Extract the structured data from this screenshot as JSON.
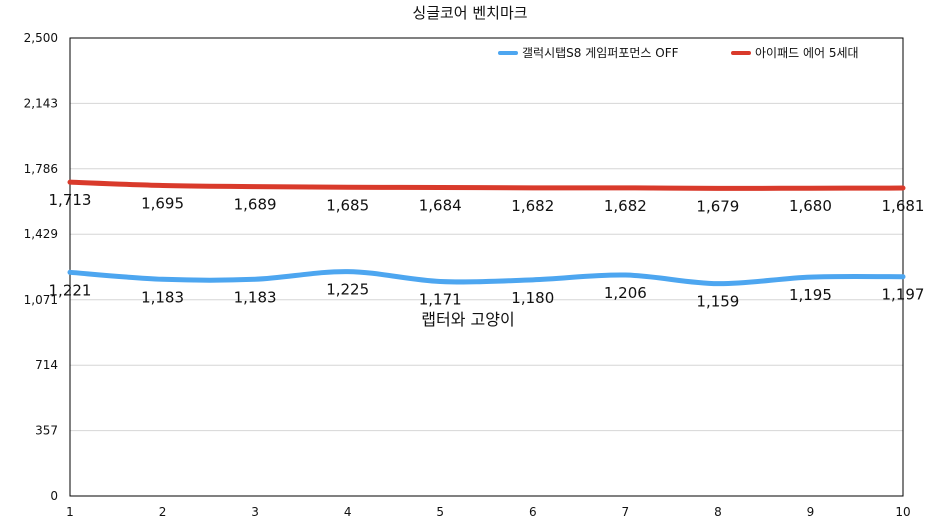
{
  "chart_data": {
    "type": "line",
    "title": "싱글코어 벤치마크",
    "xlabel": "",
    "ylabel": "",
    "categories": [
      "1",
      "2",
      "3",
      "4",
      "5",
      "6",
      "7",
      "8",
      "9",
      "10"
    ],
    "ylim": [
      0,
      2500
    ],
    "yticks": [
      "0",
      "357",
      "714",
      "1,071",
      "1,429",
      "1,786",
      "2,143",
      "2,500"
    ],
    "ytick_values": [
      0,
      357,
      714,
      1071,
      1429,
      1786,
      2143,
      2500
    ],
    "grid": true,
    "legend_position": "top-right",
    "series": [
      {
        "name": "갤럭시탭S8 게임퍼포먼스 OFF",
        "color": "#4da6f0",
        "values": [
          1221,
          1183,
          1183,
          1225,
          1171,
          1180,
          1206,
          1159,
          1195,
          1197
        ],
        "labels": [
          "1,221",
          "1,183",
          "1,183",
          "1,225",
          "1,171",
          "1,180",
          "1,206",
          "1,159",
          "1,195",
          "1,197"
        ]
      },
      {
        "name": "아이패드 에어 5세대",
        "color": "#d93a2b",
        "values": [
          1713,
          1695,
          1689,
          1685,
          1684,
          1682,
          1682,
          1679,
          1680,
          1681
        ],
        "labels": [
          "1,713",
          "1,695",
          "1,689",
          "1,685",
          "1,684",
          "1,682",
          "1,682",
          "1,679",
          "1,680",
          "1,681"
        ]
      }
    ],
    "annotation": "랩터와 고양이"
  }
}
